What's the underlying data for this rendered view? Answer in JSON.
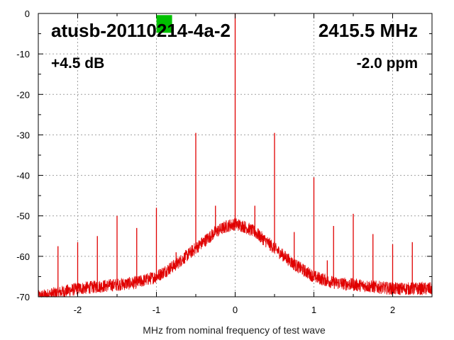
{
  "chart_data": {
    "type": "line",
    "title": "",
    "xlabel": "MHz from nominal frequency of test wave",
    "ylabel": "",
    "xlim": [
      -2.5,
      2.5
    ],
    "ylim": [
      -70,
      0
    ],
    "x_ticks": [
      -2,
      -1,
      0,
      1,
      2
    ],
    "y_ticks": [
      0,
      -10,
      -20,
      -30,
      -40,
      -50,
      -60,
      -70
    ],
    "x_tick_labels": [
      "-2",
      "-1",
      "0",
      "1",
      "2"
    ],
    "y_tick_labels": [
      "0",
      "-10",
      "-20",
      "-30",
      "-40",
      "-50",
      "-60",
      "-70"
    ],
    "grid": true,
    "annotations": {
      "device": "atusb-20110214-4a-2",
      "frequency": "2415.5 MHz",
      "gain": "+4.5 dB",
      "drift": "-2.0 ppm"
    },
    "series_color": "#e00000",
    "marker_color": "#00c000",
    "noise_floor": {
      "x": [
        -2.5,
        -2.25,
        -2.0,
        -1.75,
        -1.5,
        -1.25,
        -1.0,
        -0.75,
        -0.5,
        -0.25,
        -0.1,
        0.0,
        0.1,
        0.25,
        0.5,
        0.75,
        1.0,
        1.25,
        1.5,
        1.75,
        2.0,
        2.25,
        2.5
      ],
      "y": [
        -70,
        -69,
        -68,
        -67.5,
        -67,
        -66.5,
        -65,
        -62,
        -58,
        -54,
        -52.5,
        -52,
        -52.5,
        -54,
        -58,
        -62,
        -65,
        -66.5,
        -67,
        -67.5,
        -68,
        -68,
        -68
      ]
    },
    "spurs": [
      {
        "x": -2.25,
        "y": -57.5
      },
      {
        "x": -2.0,
        "y": -56.5
      },
      {
        "x": -1.75,
        "y": -55
      },
      {
        "x": -1.5,
        "y": -50
      },
      {
        "x": -1.25,
        "y": -53
      },
      {
        "x": -1.0,
        "y": -48
      },
      {
        "x": -0.75,
        "y": -59
      },
      {
        "x": -0.5,
        "y": -29.5
      },
      {
        "x": -0.25,
        "y": -47.5
      },
      {
        "x": 0.0,
        "y": 0
      },
      {
        "x": 0.25,
        "y": -47.5
      },
      {
        "x": 0.5,
        "y": -29.5
      },
      {
        "x": 0.75,
        "y": -54
      },
      {
        "x": 1.0,
        "y": -40.5
      },
      {
        "x": 1.17,
        "y": -61
      },
      {
        "x": 1.25,
        "y": -52.5
      },
      {
        "x": 1.5,
        "y": -49.5
      },
      {
        "x": 1.75,
        "y": -54.5
      },
      {
        "x": 2.0,
        "y": -57
      },
      {
        "x": 2.25,
        "y": -56.5
      }
    ],
    "marker": {
      "x": -0.9,
      "y": -2.5
    }
  }
}
